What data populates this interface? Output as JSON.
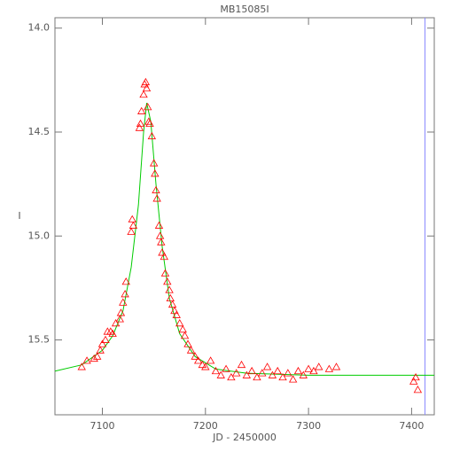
{
  "chart_data": {
    "type": "scatter",
    "title": "MB15085I",
    "x_label": "JD - 2450000",
    "y_label": "I",
    "xlim": [
      7054,
      7422
    ],
    "ylim": [
      15.86,
      13.95
    ],
    "xticks": [
      7100,
      7200,
      7300,
      7400
    ],
    "yticks": [
      {
        "value": 14.0,
        "label": "14.0"
      },
      14.5,
      {
        "value": 15.0,
        "label": "15.0"
      },
      15.5
    ],
    "points": {
      "color": "#ff0000",
      "x": [
        7080,
        7085,
        7092,
        7095,
        7098,
        7100,
        7103,
        7105,
        7108,
        7110,
        7113,
        7117,
        7118,
        7120,
        7122,
        7123,
        7128,
        7129,
        7130,
        7136,
        7137,
        7138,
        7140,
        7141,
        7142,
        7143,
        7144,
        7145,
        7146,
        7148,
        7150,
        7151,
        7152,
        7153,
        7155,
        7156,
        7157,
        7158,
        7160,
        7161,
        7163,
        7165,
        7166,
        7168,
        7170,
        7172,
        7175,
        7178,
        7180,
        7183,
        7186,
        7190,
        7193,
        7197,
        7200,
        7205,
        7210,
        7215,
        7220,
        7225,
        7230,
        7235,
        7240,
        7245,
        7250,
        7255,
        7260,
        7265,
        7270,
        7275,
        7280,
        7285,
        7290,
        7295,
        7300,
        7305,
        7310,
        7320,
        7327,
        7402,
        7404,
        7406
      ],
      "values": [
        15.63,
        15.6,
        15.59,
        15.58,
        15.55,
        15.52,
        15.5,
        15.46,
        15.46,
        15.47,
        15.42,
        15.4,
        15.37,
        15.32,
        15.28,
        15.22,
        14.98,
        14.92,
        14.95,
        14.48,
        14.46,
        14.4,
        14.32,
        14.27,
        14.26,
        14.29,
        14.38,
        14.45,
        14.46,
        14.52,
        14.65,
        14.7,
        14.78,
        14.82,
        14.95,
        15.0,
        15.03,
        15.08,
        15.1,
        15.18,
        15.22,
        15.26,
        15.3,
        15.33,
        15.36,
        15.38,
        15.42,
        15.45,
        15.48,
        15.52,
        15.55,
        15.58,
        15.6,
        15.62,
        15.63,
        15.6,
        15.65,
        15.67,
        15.64,
        15.68,
        15.66,
        15.62,
        15.67,
        15.65,
        15.68,
        15.66,
        15.63,
        15.67,
        15.65,
        15.68,
        15.66,
        15.69,
        15.65,
        15.67,
        15.64,
        15.65,
        15.63,
        15.64,
        15.63,
        15.7,
        15.68,
        15.74
      ]
    },
    "fit": {
      "color": "#00cc00",
      "x": [
        7054,
        7080,
        7100,
        7110,
        7120,
        7128,
        7135,
        7140,
        7143,
        7147,
        7152,
        7158,
        7165,
        7175,
        7190,
        7210,
        7240,
        7300,
        7422
      ],
      "values": [
        15.65,
        15.62,
        15.55,
        15.48,
        15.36,
        15.15,
        14.85,
        14.5,
        14.36,
        14.45,
        14.75,
        15.05,
        15.3,
        15.47,
        15.58,
        15.64,
        15.66,
        15.67,
        15.67
      ]
    },
    "vline_x": 7413,
    "vline_color": "#8888ff"
  }
}
